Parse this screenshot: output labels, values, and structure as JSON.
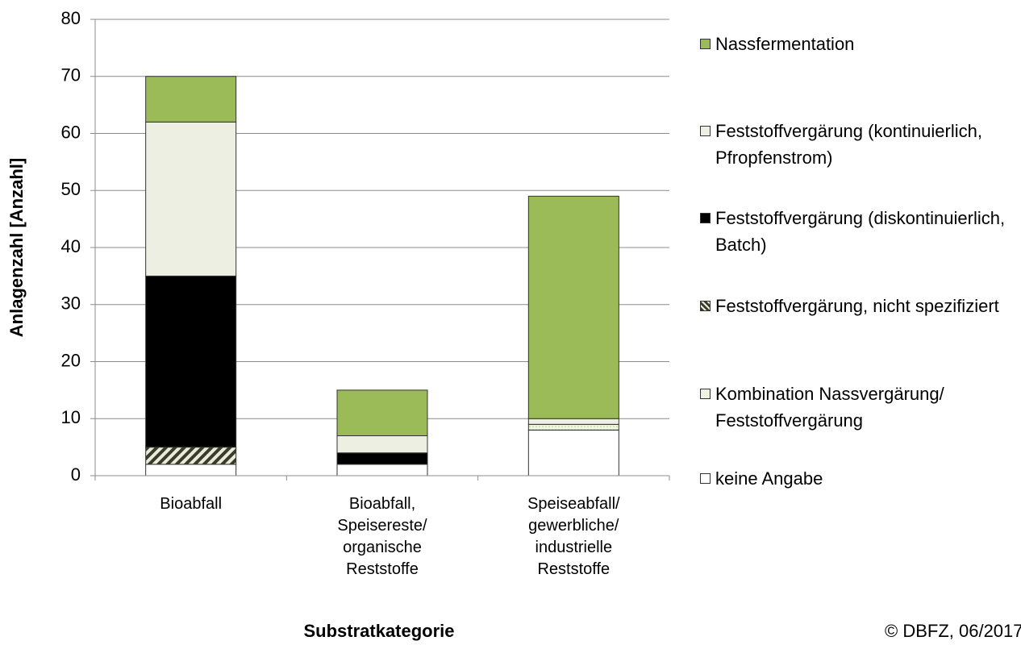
{
  "chart_data": {
    "type": "stacked-bar",
    "y_label": "Anlagenzahl [Anzahl]",
    "x_label": "Substratkategorie",
    "credit": "© DBFZ, 06/2017",
    "categories": [
      "Bioabfall",
      "Bioabfall, Speisereste/ organische Reststoffe",
      "Speiseabfall/ gewerbliche/ industrielle Reststoffe"
    ],
    "series": [
      {
        "name": "keine Angabe",
        "color": "#ffffff",
        "values": [
          2,
          2,
          8
        ]
      },
      {
        "name": "Kombination Nassvergärung/ Feststoffvergärung",
        "color": "#d7e4b4",
        "pattern": "dotted",
        "values": [
          0,
          0,
          1
        ]
      },
      {
        "name": "Feststoffvergärung, nicht spezifiziert",
        "color": "#3b3b2c",
        "pattern": "diagonal",
        "values": [
          3,
          0,
          0
        ]
      },
      {
        "name": "Feststoffvergärung (diskontinuierlich, Batch)",
        "color": "#000000",
        "values": [
          30,
          2,
          0
        ]
      },
      {
        "name": "Feststoffvergärung (kontinuierlich, Pfropfenstrom)",
        "color": "#eeefe3",
        "values": [
          27,
          3,
          1
        ]
      },
      {
        "name": "Nassfermentation",
        "color": "#9bbb59",
        "values": [
          8,
          8,
          39
        ]
      }
    ],
    "ylim": [
      0,
      80
    ],
    "yticks": [
      0,
      10,
      20,
      30,
      40,
      50,
      60,
      70,
      80
    ],
    "grid": true,
    "legend": "right"
  }
}
